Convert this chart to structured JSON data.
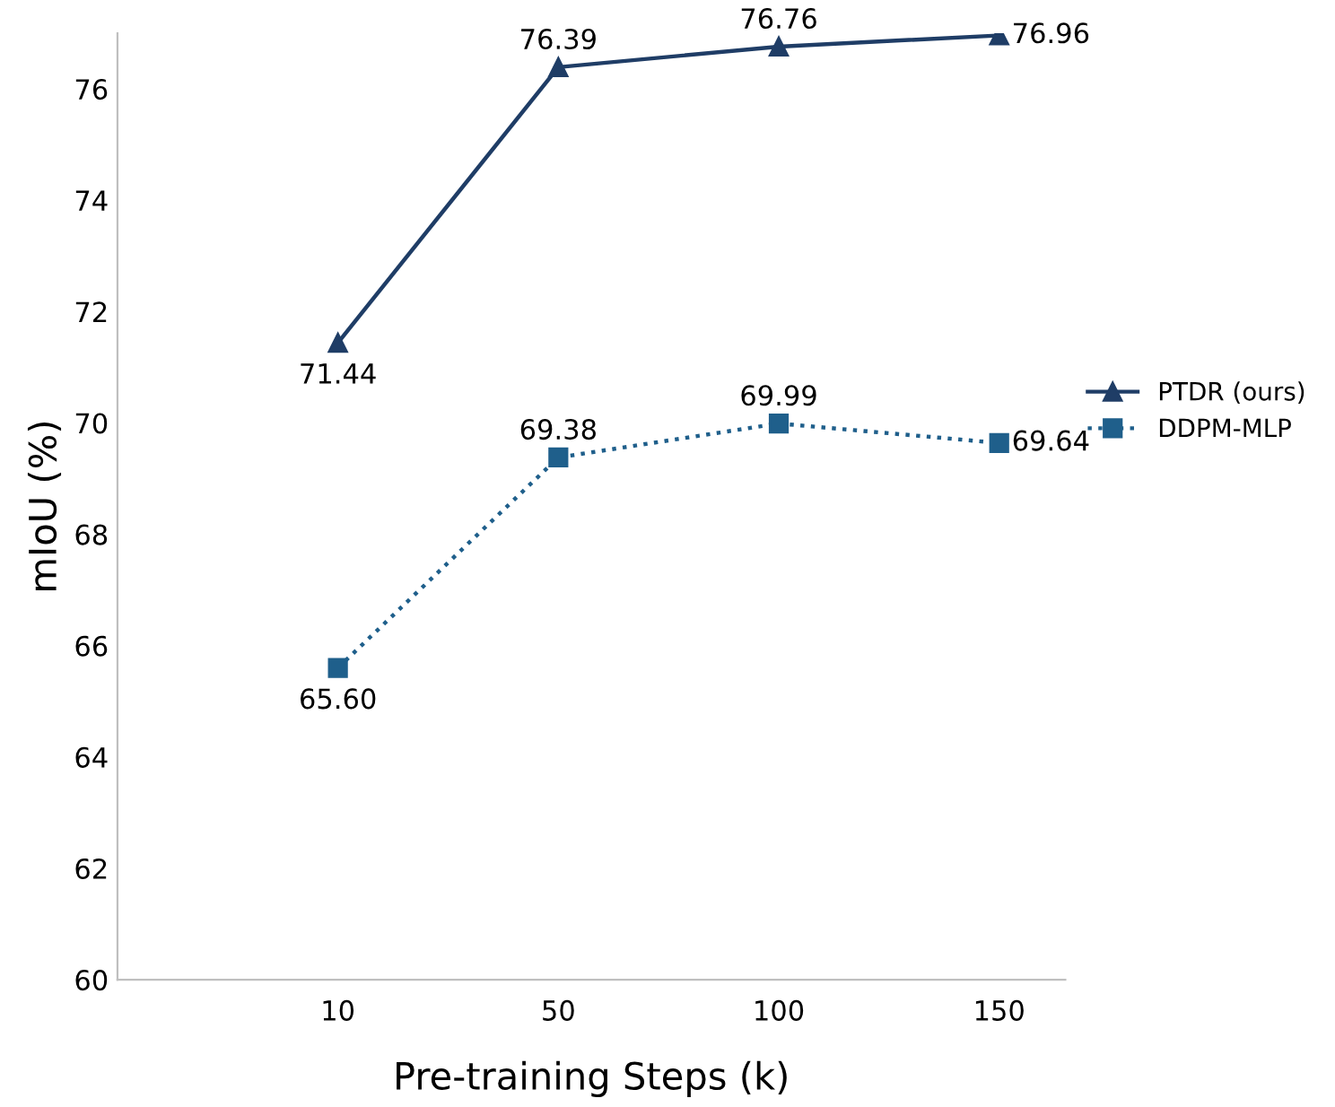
{
  "chart_data": {
    "type": "line",
    "xlabel": "Pre-training Steps (k)",
    "ylabel": "mIoU (%)",
    "categories": [
      null,
      "10",
      "50",
      "100",
      "150"
    ],
    "series": [
      {
        "name": "PTDR (ours)",
        "color": "#1f3d66",
        "values": [
          null,
          71.44,
          76.39,
          76.76,
          76.96
        ],
        "value_labels": [
          null,
          "71.44",
          "76.39",
          "76.76",
          "76.96"
        ],
        "marker": "triangle",
        "line_style": "solid"
      },
      {
        "name": "DDPM-MLP",
        "color": "#1f5f8b",
        "values": [
          null,
          65.6,
          69.38,
          69.99,
          69.64
        ],
        "value_labels": [
          null,
          "65.60",
          "69.38",
          "69.99",
          "69.64"
        ],
        "marker": "square",
        "line_style": "dotted"
      }
    ],
    "ylim": [
      60,
      77
    ],
    "yticks": [
      60,
      62,
      64,
      66,
      68,
      70,
      72,
      74,
      76
    ],
    "grid": false,
    "legend": "right"
  }
}
